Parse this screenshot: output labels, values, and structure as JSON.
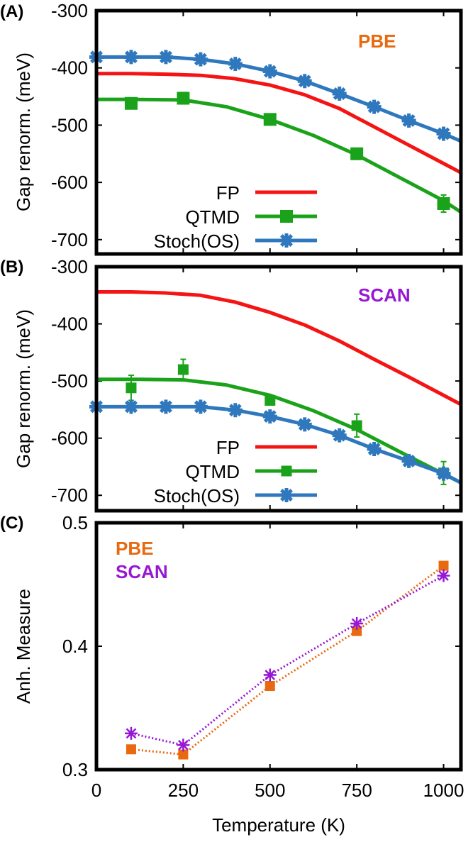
{
  "colors": {
    "FP": "#f51414",
    "QTMD": "#1aa31a",
    "Stoch": "#2f78bd",
    "PBE": "#e8690f",
    "SCAN": "#9717d4"
  },
  "chart_data": [
    {
      "type": "line",
      "panel_label": "(A)",
      "tag": "PBE",
      "ylabel": "Gap renorm. (meV)",
      "xlabel": "Temperature (K)",
      "xlim": [
        0,
        1050
      ],
      "ylim": [
        -725,
        -300
      ],
      "yticks": [
        "-300",
        "-400",
        "-500",
        "-600",
        "-700"
      ],
      "ytick_values": [
        -300,
        -400,
        -500,
        -600,
        -700
      ],
      "xtick_values": [
        250,
        500,
        750,
        1000
      ],
      "legend": [
        "FP",
        "QTMD",
        "Stoch(OS)"
      ],
      "legend_placement": "bottom-left",
      "series": [
        {
          "name": "FP",
          "key": "FP",
          "marker": "none",
          "curve": [
            [
              0,
              -410
            ],
            [
              100,
              -410
            ],
            [
              200,
              -411
            ],
            [
              300,
              -413
            ],
            [
              400,
              -419
            ],
            [
              500,
              -430
            ],
            [
              600,
              -447
            ],
            [
              700,
              -471
            ],
            [
              750,
              -487
            ],
            [
              800,
              -503
            ],
            [
              900,
              -535
            ],
            [
              1000,
              -567
            ],
            [
              1050,
              -583
            ]
          ]
        },
        {
          "name": "QTMD",
          "key": "QTMD",
          "marker": "square",
          "points": [
            [
              100,
              -462,
              0
            ],
            [
              250,
              -453,
              10
            ],
            [
              500,
              -490,
              0
            ],
            [
              750,
              -550,
              0
            ],
            [
              1000,
              -637,
              15
            ]
          ],
          "curve": [
            [
              0,
              -455
            ],
            [
              100,
              -455
            ],
            [
              250,
              -456
            ],
            [
              375,
              -468
            ],
            [
              500,
              -490
            ],
            [
              625,
              -518
            ],
            [
              750,
              -552
            ],
            [
              875,
              -592
            ],
            [
              1000,
              -632
            ],
            [
              1050,
              -652
            ]
          ]
        },
        {
          "name": "Stoch(OS)",
          "key": "Stoch",
          "marker": "star",
          "points": [
            [
              0,
              -381,
              0
            ],
            [
              100,
              -381,
              0
            ],
            [
              200,
              -381,
              0
            ],
            [
              300,
              -385,
              0
            ],
            [
              400,
              -393,
              0
            ],
            [
              500,
              -406,
              0
            ],
            [
              600,
              -423,
              0
            ],
            [
              700,
              -445,
              0
            ],
            [
              800,
              -468,
              0
            ],
            [
              900,
              -492,
              0
            ],
            [
              1000,
              -515,
              0
            ]
          ],
          "curve": [
            [
              0,
              -381
            ],
            [
              100,
              -381
            ],
            [
              200,
              -381
            ],
            [
              300,
              -385
            ],
            [
              400,
              -393
            ],
            [
              500,
              -406
            ],
            [
              600,
              -423
            ],
            [
              700,
              -445
            ],
            [
              800,
              -468
            ],
            [
              900,
              -492
            ],
            [
              1000,
              -515
            ],
            [
              1050,
              -528
            ]
          ]
        }
      ]
    },
    {
      "type": "line",
      "panel_label": "(B)",
      "tag": "SCAN",
      "ylabel": "Gap renorm. (meV)",
      "xlim": [
        0,
        1050
      ],
      "ylim": [
        -727,
        -300
      ],
      "yticks": [
        "-300",
        "-400",
        "-500",
        "-600",
        "-700"
      ],
      "ytick_values": [
        -300,
        -400,
        -500,
        -600,
        -700
      ],
      "xtick_values": [
        250,
        500,
        750,
        1000
      ],
      "legend": [
        "FP",
        "QTMD",
        "Stoch(OS)"
      ],
      "legend_placement": "bottom-left",
      "series": [
        {
          "name": "FP",
          "key": "FP",
          "marker": "none",
          "curve": [
            [
              0,
              -344
            ],
            [
              100,
              -344
            ],
            [
              200,
              -346
            ],
            [
              300,
              -350
            ],
            [
              400,
              -362
            ],
            [
              500,
              -380
            ],
            [
              600,
              -402
            ],
            [
              700,
              -430
            ],
            [
              800,
              -462
            ],
            [
              900,
              -493
            ],
            [
              1000,
              -525
            ],
            [
              1050,
              -541
            ]
          ]
        },
        {
          "name": "QTMD",
          "key": "QTMD",
          "marker": "square",
          "points": [
            [
              100,
              -512,
              22
            ],
            [
              250,
              -480,
              18
            ],
            [
              500,
              -534,
              0
            ],
            [
              750,
              -578,
              20
            ],
            [
              1000,
              -661,
              20
            ]
          ],
          "curve": [
            [
              0,
              -497
            ],
            [
              125,
              -497
            ],
            [
              250,
              -498
            ],
            [
              375,
              -507
            ],
            [
              500,
              -525
            ],
            [
              625,
              -552
            ],
            [
              750,
              -585
            ],
            [
              900,
              -632
            ],
            [
              1050,
              -678
            ]
          ]
        },
        {
          "name": "Stoch(OS)",
          "key": "Stoch",
          "marker": "star",
          "points": [
            [
              0,
              -545,
              0
            ],
            [
              100,
              -545,
              0
            ],
            [
              200,
              -545,
              0
            ],
            [
              300,
              -545,
              0
            ],
            [
              400,
              -551,
              0
            ],
            [
              500,
              -562,
              0
            ],
            [
              600,
              -576,
              0
            ],
            [
              700,
              -595,
              0
            ],
            [
              800,
              -619,
              0
            ],
            [
              900,
              -640,
              0
            ],
            [
              1000,
              -662,
              0
            ]
          ],
          "curve": [
            [
              0,
              -545
            ],
            [
              100,
              -545
            ],
            [
              200,
              -545
            ],
            [
              300,
              -545
            ],
            [
              400,
              -551
            ],
            [
              500,
              -562
            ],
            [
              600,
              -576
            ],
            [
              700,
              -595
            ],
            [
              800,
              -619
            ],
            [
              900,
              -640
            ],
            [
              1000,
              -662
            ],
            [
              1050,
              -678
            ]
          ]
        }
      ]
    },
    {
      "type": "line",
      "panel_label": "(C)",
      "ylabel": "Anh. Measure",
      "xlabel": "Temperature (K)",
      "xlim": [
        0,
        1050
      ],
      "ylim": [
        0.3,
        0.5
      ],
      "yticks": [
        "0.3",
        "0.4",
        "0.5"
      ],
      "ytick_values": [
        0.3,
        0.4,
        0.5
      ],
      "xtick_values": [
        250,
        500,
        750,
        1000
      ],
      "xticks": [
        "0",
        "250",
        "500",
        "750",
        "1000"
      ],
      "xtick_label_values": [
        0,
        250,
        500,
        750,
        1000
      ],
      "legend": [
        "PBE",
        "SCAN"
      ],
      "legend_placement": "top-left",
      "series": [
        {
          "name": "PBE",
          "key": "PBE",
          "marker": "square",
          "style": "dotted",
          "points": [
            [
              100,
              0.3165,
              0
            ],
            [
              250,
              0.3123,
              0
            ],
            [
              500,
              0.3678,
              0
            ],
            [
              750,
              0.4123,
              0
            ],
            [
              1000,
              0.4652,
              0
            ]
          ]
        },
        {
          "name": "SCAN",
          "key": "SCAN",
          "marker": "asterisk",
          "style": "dotted",
          "points": [
            [
              100,
              0.3294,
              0
            ],
            [
              250,
              0.3199,
              0
            ],
            [
              500,
              0.3767,
              0
            ],
            [
              750,
              0.4184,
              0
            ],
            [
              1000,
              0.4572,
              0
            ]
          ]
        }
      ]
    }
  ]
}
